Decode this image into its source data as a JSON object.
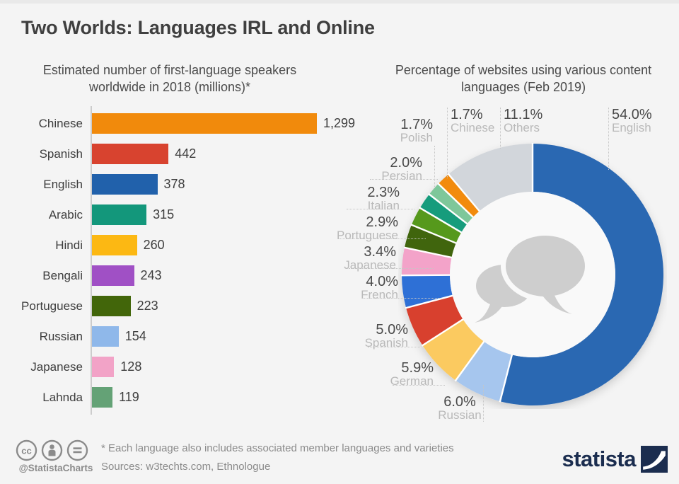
{
  "page": {
    "title": "Two Worlds: Languages IRL and Online"
  },
  "chart_data": [
    {
      "type": "bar",
      "orientation": "horizontal",
      "title": "Estimated number of first-language speakers worldwide in 2018 (millions)*",
      "categories": [
        "Chinese",
        "Spanish",
        "English",
        "Arabic",
        "Hindi",
        "Bengali",
        "Portuguese",
        "Russian",
        "Japanese",
        "Lahnda"
      ],
      "values": [
        1299,
        442,
        378,
        315,
        260,
        243,
        223,
        154,
        128,
        119
      ],
      "value_labels": [
        "1,299",
        "442",
        "378",
        "315",
        "260",
        "243",
        "223",
        "154",
        "128",
        "119"
      ],
      "colors": [
        "#f18a0c",
        "#d8432f",
        "#2161ab",
        "#13977b",
        "#fcb813",
        "#a050c5",
        "#42660a",
        "#8fb8ea",
        "#f2a3c7",
        "#64a276"
      ],
      "xlabel": "",
      "ylabel": "",
      "xlim": [
        0,
        1350
      ],
      "grid": false
    },
    {
      "type": "pie",
      "donut": true,
      "title": "Percentage of websites using various content languages (Feb 2019)",
      "start_angle_deg_from_top": 0,
      "direction": "clockwise",
      "center_icon": "speech-bubbles-icon",
      "slices": [
        {
          "label": "English",
          "pct": 54.0,
          "display": "54.0%",
          "color": "#2b67b2"
        },
        {
          "label": "Russian",
          "pct": 6.0,
          "display": "6.0%",
          "color": "#a6c6ee"
        },
        {
          "label": "German",
          "pct": 5.9,
          "display": "5.9%",
          "color": "#fbca60"
        },
        {
          "label": "Spanish",
          "pct": 5.0,
          "display": "5.0%",
          "color": "#d8402f"
        },
        {
          "label": "French",
          "pct": 4.0,
          "display": "4.0%",
          "color": "#2e6fd6"
        },
        {
          "label": "Japanese",
          "pct": 3.4,
          "display": "3.4%",
          "color": "#f3a3c9"
        },
        {
          "label": "Portuguese",
          "pct": 2.9,
          "display": "2.9%",
          "color": "#3f6509"
        },
        {
          "label": "Italian",
          "pct": 2.3,
          "display": "2.3%",
          "color": "#57991d"
        },
        {
          "label": "Persian",
          "pct": 2.0,
          "display": "2.0%",
          "color": "#149c7c"
        },
        {
          "label": "Polish",
          "pct": 1.7,
          "display": "1.7%",
          "color": "#7ec79a"
        },
        {
          "label": "Chinese",
          "pct": 1.7,
          "display": "1.7%",
          "color": "#f28b0a"
        },
        {
          "label": "Others",
          "pct": 11.1,
          "display": "11.1%",
          "color": "#d2d6db"
        }
      ]
    }
  ],
  "footer": {
    "note": "* Each language also includes associated member languages and varieties",
    "sources": "Sources: w3techts.com, Ethnologue",
    "credit": "@StatistaCharts",
    "brand": "statista",
    "license_icons": [
      "cc-icon",
      "attribution-icon",
      "equals-icon"
    ],
    "brand_icon": "statista-swoosh-icon"
  }
}
